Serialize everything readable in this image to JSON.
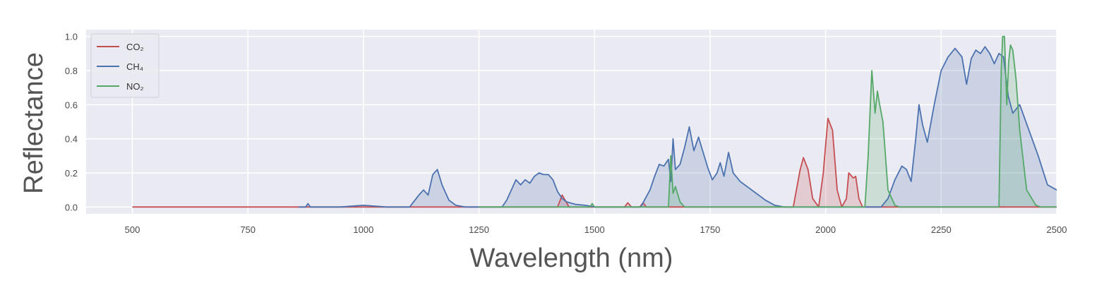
{
  "chart_data": {
    "type": "area",
    "xlabel": "Wavelength (nm)",
    "ylabel": "Reflectance",
    "xlim": [
      400,
      2500
    ],
    "ylim": [
      -0.04,
      1.04
    ],
    "xticks": [
      500,
      750,
      1000,
      1250,
      1500,
      1750,
      2000,
      2250,
      2500
    ],
    "yticks": [
      0.0,
      0.2,
      0.4,
      0.6,
      0.8,
      1.0
    ],
    "grid": true,
    "legend_position": "top-left",
    "colors": {
      "background": "#eaeaf2",
      "grid": "#ffffff"
    },
    "series": [
      {
        "name": "CO₂",
        "color": "#c44e52",
        "points": [
          [
            500,
            0.0
          ],
          [
            1420,
            0.0
          ],
          [
            1430,
            0.07
          ],
          [
            1445,
            0.0
          ],
          [
            1565,
            0.0
          ],
          [
            1572,
            0.025
          ],
          [
            1580,
            0.0
          ],
          [
            1598,
            0.0
          ],
          [
            1605,
            0.025
          ],
          [
            1612,
            0.0
          ],
          [
            1930,
            0.0
          ],
          [
            1945,
            0.22
          ],
          [
            1952,
            0.29
          ],
          [
            1962,
            0.22
          ],
          [
            1972,
            0.05
          ],
          [
            1985,
            0.0
          ],
          [
            1995,
            0.2
          ],
          [
            2005,
            0.52
          ],
          [
            2015,
            0.45
          ],
          [
            2025,
            0.1
          ],
          [
            2035,
            0.0
          ],
          [
            2045,
            0.05
          ],
          [
            2050,
            0.2
          ],
          [
            2060,
            0.17
          ],
          [
            2065,
            0.18
          ],
          [
            2072,
            0.05
          ],
          [
            2080,
            0.0
          ],
          [
            2500,
            0.0
          ]
        ]
      },
      {
        "name": "CH₄",
        "color": "#4c72b0",
        "points": [
          [
            860,
            0.0
          ],
          [
            875,
            0.0
          ],
          [
            880,
            0.02
          ],
          [
            885,
            0.0
          ],
          [
            950,
            0.0
          ],
          [
            1000,
            0.01
          ],
          [
            1050,
            0.0
          ],
          [
            1100,
            0.0
          ],
          [
            1120,
            0.07
          ],
          [
            1130,
            0.1
          ],
          [
            1140,
            0.07
          ],
          [
            1150,
            0.19
          ],
          [
            1160,
            0.22
          ],
          [
            1170,
            0.13
          ],
          [
            1185,
            0.04
          ],
          [
            1200,
            0.01
          ],
          [
            1220,
            0.0
          ],
          [
            1300,
            0.0
          ],
          [
            1310,
            0.04
          ],
          [
            1320,
            0.1
          ],
          [
            1330,
            0.16
          ],
          [
            1340,
            0.13
          ],
          [
            1350,
            0.16
          ],
          [
            1360,
            0.14
          ],
          [
            1370,
            0.18
          ],
          [
            1380,
            0.2
          ],
          [
            1390,
            0.19
          ],
          [
            1400,
            0.19
          ],
          [
            1410,
            0.16
          ],
          [
            1420,
            0.09
          ],
          [
            1430,
            0.05
          ],
          [
            1440,
            0.03
          ],
          [
            1460,
            0.015
          ],
          [
            1480,
            0.01
          ],
          [
            1500,
            0.0
          ],
          [
            1600,
            0.0
          ],
          [
            1620,
            0.1
          ],
          [
            1630,
            0.18
          ],
          [
            1640,
            0.25
          ],
          [
            1650,
            0.24
          ],
          [
            1660,
            0.28
          ],
          [
            1665,
            0.15
          ],
          [
            1670,
            0.4
          ],
          [
            1675,
            0.22
          ],
          [
            1685,
            0.25
          ],
          [
            1695,
            0.35
          ],
          [
            1705,
            0.47
          ],
          [
            1715,
            0.33
          ],
          [
            1725,
            0.41
          ],
          [
            1735,
            0.32
          ],
          [
            1745,
            0.23
          ],
          [
            1755,
            0.16
          ],
          [
            1765,
            0.2
          ],
          [
            1772,
            0.26
          ],
          [
            1780,
            0.18
          ],
          [
            1790,
            0.32
          ],
          [
            1800,
            0.2
          ],
          [
            1815,
            0.15
          ],
          [
            1830,
            0.12
          ],
          [
            1850,
            0.08
          ],
          [
            1870,
            0.04
          ],
          [
            1890,
            0.01
          ],
          [
            1910,
            0.0
          ],
          [
            1960,
            0.0
          ],
          [
            2050,
            0.0
          ],
          [
            2120,
            0.0
          ],
          [
            2135,
            0.05
          ],
          [
            2150,
            0.16
          ],
          [
            2165,
            0.24
          ],
          [
            2175,
            0.22
          ],
          [
            2185,
            0.15
          ],
          [
            2195,
            0.4
          ],
          [
            2202,
            0.6
          ],
          [
            2210,
            0.48
          ],
          [
            2220,
            0.38
          ],
          [
            2235,
            0.6
          ],
          [
            2250,
            0.8
          ],
          [
            2265,
            0.88
          ],
          [
            2280,
            0.93
          ],
          [
            2295,
            0.88
          ],
          [
            2305,
            0.72
          ],
          [
            2315,
            0.87
          ],
          [
            2325,
            0.92
          ],
          [
            2335,
            0.9
          ],
          [
            2345,
            0.94
          ],
          [
            2355,
            0.9
          ],
          [
            2365,
            0.84
          ],
          [
            2375,
            0.9
          ],
          [
            2385,
            0.88
          ],
          [
            2395,
            0.65
          ],
          [
            2405,
            0.55
          ],
          [
            2420,
            0.6
          ],
          [
            2440,
            0.45
          ],
          [
            2460,
            0.3
          ],
          [
            2480,
            0.13
          ],
          [
            2500,
            0.1
          ]
        ]
      },
      {
        "name": "NO₂",
        "color": "#55a868",
        "points": [
          [
            1250,
            0.0
          ],
          [
            1490,
            0.0
          ],
          [
            1495,
            0.02
          ],
          [
            1500,
            0.0
          ],
          [
            1660,
            0.0
          ],
          [
            1665,
            0.3
          ],
          [
            1670,
            0.08
          ],
          [
            1675,
            0.12
          ],
          [
            1685,
            0.03
          ],
          [
            1695,
            0.0
          ],
          [
            2085,
            0.0
          ],
          [
            2092,
            0.3
          ],
          [
            2100,
            0.8
          ],
          [
            2107,
            0.55
          ],
          [
            2112,
            0.68
          ],
          [
            2117,
            0.6
          ],
          [
            2124,
            0.5
          ],
          [
            2135,
            0.1
          ],
          [
            2150,
            0.01
          ],
          [
            2160,
            0.0
          ],
          [
            2375,
            0.0
          ],
          [
            2380,
            0.8
          ],
          [
            2383,
            1.0
          ],
          [
            2387,
            1.0
          ],
          [
            2392,
            0.6
          ],
          [
            2396,
            0.85
          ],
          [
            2400,
            0.95
          ],
          [
            2405,
            0.92
          ],
          [
            2412,
            0.75
          ],
          [
            2420,
            0.45
          ],
          [
            2435,
            0.1
          ],
          [
            2455,
            0.01
          ],
          [
            2465,
            0.0
          ],
          [
            2500,
            0.0
          ]
        ]
      }
    ]
  }
}
